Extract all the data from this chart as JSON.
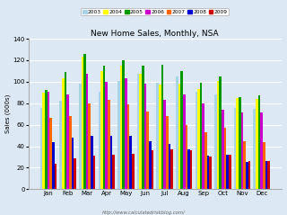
{
  "title": "New Home Sales, Monthly, NSA",
  "ylabel": "Sales (000s)",
  "url": "http://www.calculatedriskblog.com/",
  "months": [
    "Jan",
    "Feb",
    "Mar",
    "Apr",
    "May",
    "Jun",
    "Jul",
    "Aug",
    "Sep",
    "Oct",
    "Nov",
    "Dec"
  ],
  "years": [
    "2003",
    "2004",
    "2005",
    "2006",
    "2007",
    "2008",
    "2009"
  ],
  "colors": [
    "#a8d4e6",
    "#ffff00",
    "#009900",
    "#cc00cc",
    "#ff6600",
    "#0000cc",
    "#cc0000"
  ],
  "ylim": [
    0,
    140
  ],
  "yticks": [
    0,
    20,
    40,
    60,
    80,
    100,
    120,
    140
  ],
  "data": {
    "2003": [
      76,
      82,
      98,
      91,
      101,
      107,
      99,
      105,
      91,
      88,
      76,
      75
    ],
    "2004": [
      90,
      103,
      123,
      110,
      115,
      107,
      97,
      98,
      93,
      101,
      85,
      84
    ],
    "2005": [
      92,
      109,
      126,
      115,
      120,
      115,
      116,
      110,
      99,
      105,
      86,
      87
    ],
    "2006": [
      91,
      88,
      107,
      100,
      103,
      98,
      83,
      88,
      80,
      74,
      71,
      71
    ],
    "2007": [
      66,
      68,
      80,
      83,
      79,
      72,
      68,
      60,
      53,
      57,
      45,
      44
    ],
    "2008": [
      44,
      48,
      50,
      50,
      50,
      45,
      42,
      37,
      31,
      32,
      25,
      26
    ],
    "2009": [
      24,
      29,
      31,
      32,
      33,
      36,
      37,
      36,
      30,
      32,
      26,
      26
    ]
  },
  "background_color": "#dce9f5",
  "plot_bg_color": "#dce9f5",
  "grid_color": "#ffffff",
  "title_fontsize": 6.5,
  "legend_fontsize": 4.2,
  "tick_fontsize": 5,
  "ylabel_fontsize": 5
}
